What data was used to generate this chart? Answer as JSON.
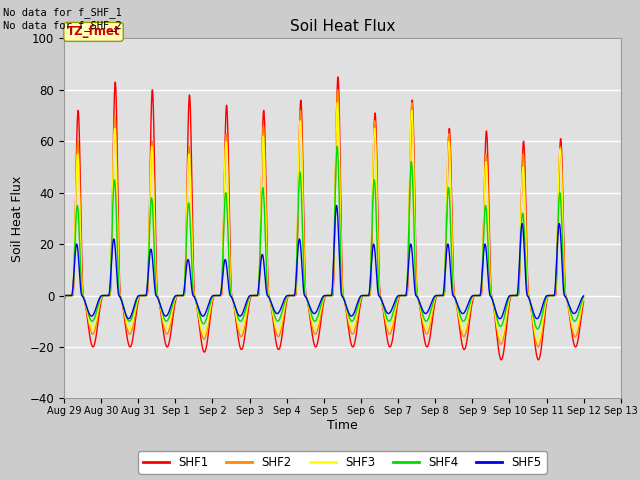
{
  "title": "Soil Heat Flux",
  "ylabel": "Soil Heat Flux",
  "xlabel": "Time",
  "ylim": [
    -40,
    100
  ],
  "x_tick_labels": [
    "Aug 29",
    "Aug 30",
    "Aug 31",
    "Sep 1",
    "Sep 2",
    "Sep 3",
    "Sep 4",
    "Sep 5",
    "Sep 6",
    "Sep 7",
    "Sep 8",
    "Sep 9",
    "Sep 10",
    "Sep 11",
    "Sep 12",
    "Sep 13"
  ],
  "series_colors": [
    "#ff0000",
    "#ff8800",
    "#ffff00",
    "#00dd00",
    "#0000ee"
  ],
  "series_names": [
    "SHF1",
    "SHF2",
    "SHF3",
    "SHF4",
    "SHF5"
  ],
  "annotation_top_left": "No data for f_SHF_1\nNo data for f_SHF_2",
  "tz_label": "TZ_fmet",
  "background_color": "#cccccc",
  "plot_bg_color": "#e0e0e0",
  "grid_color": "#ffffff",
  "linewidth": 1.0,
  "n_cycles": 14,
  "peak_heights": [
    [
      72,
      83,
      80,
      78,
      74,
      72,
      76,
      85,
      71,
      76,
      65,
      64,
      60,
      61
    ],
    [
      60,
      70,
      60,
      58,
      63,
      66,
      72,
      80,
      68,
      75,
      63,
      55,
      55,
      58
    ],
    [
      55,
      65,
      58,
      55,
      60,
      62,
      68,
      75,
      65,
      72,
      60,
      52,
      50,
      57
    ],
    [
      35,
      45,
      38,
      36,
      40,
      42,
      48,
      58,
      45,
      52,
      42,
      35,
      32,
      40
    ],
    [
      20,
      22,
      18,
      14,
      14,
      16,
      22,
      35,
      20,
      20,
      20,
      20,
      28,
      28
    ]
  ],
  "trough_depths": [
    [
      -20,
      -20,
      -20,
      -22,
      -21,
      -21,
      -20,
      -20,
      -20,
      -20,
      -21,
      -25,
      -25,
      -20
    ],
    [
      -15,
      -15,
      -15,
      -17,
      -16,
      -16,
      -15,
      -15,
      -15,
      -15,
      -16,
      -19,
      -20,
      -16
    ],
    [
      -13,
      -13,
      -13,
      -15,
      -14,
      -14,
      -13,
      -13,
      -13,
      -13,
      -14,
      -17,
      -18,
      -14
    ],
    [
      -10,
      -10,
      -10,
      -11,
      -10,
      -10,
      -10,
      -10,
      -10,
      -10,
      -10,
      -12,
      -13,
      -10
    ],
    [
      -8,
      -9,
      -8,
      -8,
      -8,
      -7,
      -7,
      -8,
      -7,
      -7,
      -7,
      -9,
      -9,
      -7
    ]
  ],
  "phase_shifts": [
    0.0,
    0.008,
    0.013,
    0.022,
    0.038
  ]
}
